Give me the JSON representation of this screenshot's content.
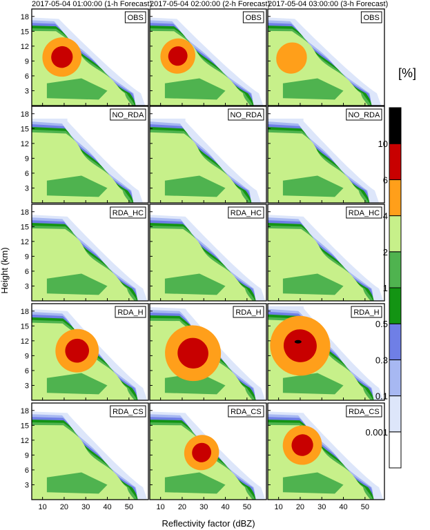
{
  "chart_data": {
    "type": "heatmap",
    "variable": "CFAD",
    "xlabel": "Reflectivity factor (dBZ)",
    "ylabel": "Height (km)",
    "xlim": [
      5,
      59
    ],
    "ylim": [
      0,
      19.5
    ],
    "xticks": [
      10,
      20,
      30,
      40,
      50
    ],
    "yticks": [
      3,
      6,
      9,
      12,
      15,
      18
    ],
    "column_titles": [
      "2017-05-04  01:00:00 (1-h Forecast)",
      "2017-05-04  02:00:00 (2-h Forecast)",
      "2017-05-04  03:00:00 (3-h Forecast)"
    ],
    "row_labels": [
      "OBS",
      "NO_RDA",
      "RDA_HC",
      "RDA_H",
      "RDA_CS"
    ],
    "colorbar": {
      "unit": "[%]",
      "levels": [
        "0.001",
        "0.1",
        "0.3",
        "0.5",
        "1",
        "2",
        "4",
        "6",
        "10"
      ],
      "colors": [
        "#ffffff",
        "#dde6fa",
        "#a7b8f2",
        "#6f7fe6",
        "#139413",
        "#4fb34f",
        "#c7f08a",
        "#ff9f1a",
        "#c80000",
        "#000000"
      ]
    },
    "panels": [
      [
        {
          "row": "OBS",
          "time": "01:00",
          "profile": "obs",
          "core": [
            19,
            9.8,
            0.5
          ]
        },
        {
          "row": "OBS",
          "time": "02:00",
          "profile": "obs",
          "core": [
            18,
            10.0,
            0.4
          ]
        },
        {
          "row": "OBS",
          "time": "03:00",
          "profile": "obs",
          "core": [
            16,
            9.6,
            0.3
          ]
        }
      ],
      [
        {
          "row": "NO_RDA",
          "time": "01:00",
          "profile": "nordahigh",
          "core": [
            22,
            8,
            0
          ]
        },
        {
          "row": "NO_RDA",
          "time": "02:00",
          "profile": "nordahigh",
          "core": [
            22,
            8,
            0
          ]
        },
        {
          "row": "NO_RDA",
          "time": "03:00",
          "profile": "nordahigh",
          "core": [
            20,
            9,
            0
          ]
        }
      ],
      [
        {
          "row": "RDA_HC",
          "time": "01:00",
          "profile": "hc",
          "core": [
            22,
            8,
            0
          ]
        },
        {
          "row": "RDA_HC",
          "time": "02:00",
          "profile": "hc",
          "core": [
            22,
            8,
            0
          ]
        },
        {
          "row": "RDA_HC",
          "time": "03:00",
          "profile": "hc",
          "core": [
            20,
            9,
            0
          ]
        }
      ],
      [
        {
          "row": "RDA_H",
          "time": "01:00",
          "profile": "h1",
          "core": [
            26,
            10,
            0.6
          ]
        },
        {
          "row": "RDA_H",
          "time": "02:00",
          "profile": "h2",
          "core": [
            25,
            9.5,
            0.9
          ]
        },
        {
          "row": "RDA_H",
          "time": "03:00",
          "profile": "h3",
          "core": [
            20,
            11,
            1.0
          ]
        }
      ],
      [
        {
          "row": "RDA_CS",
          "time": "01:00",
          "profile": "cs",
          "core": [
            22,
            8,
            0
          ]
        },
        {
          "row": "RDA_CS",
          "time": "02:00",
          "profile": "cs",
          "core": [
            29,
            9.5,
            0.4
          ]
        },
        {
          "row": "RDA_CS",
          "time": "03:00",
          "profile": "cs",
          "core": [
            21,
            11,
            0.5
          ]
        }
      ]
    ]
  }
}
